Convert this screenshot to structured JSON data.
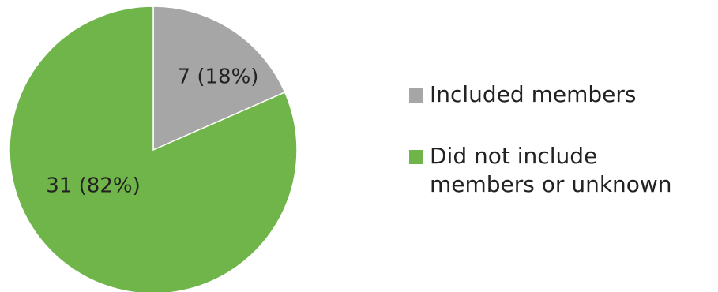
{
  "chart_data": {
    "type": "pie",
    "title": "",
    "categories": [
      "Included members",
      "Did not include members or unknown"
    ],
    "values": [
      7,
      31
    ],
    "percents": [
      18,
      82
    ],
    "data_labels": [
      "7 (18%)",
      "31 (82%)"
    ],
    "colors": [
      "#a6a6a6",
      "#70b54a"
    ],
    "start_angle_deg": 0,
    "direction": "clockwise",
    "legend_position": "right",
    "legend": [
      {
        "label": "Included members",
        "color": "#a6a6a6"
      },
      {
        "label_lines": [
          "Did not include",
          "members or unknown"
        ],
        "color": "#70b54a"
      }
    ]
  }
}
